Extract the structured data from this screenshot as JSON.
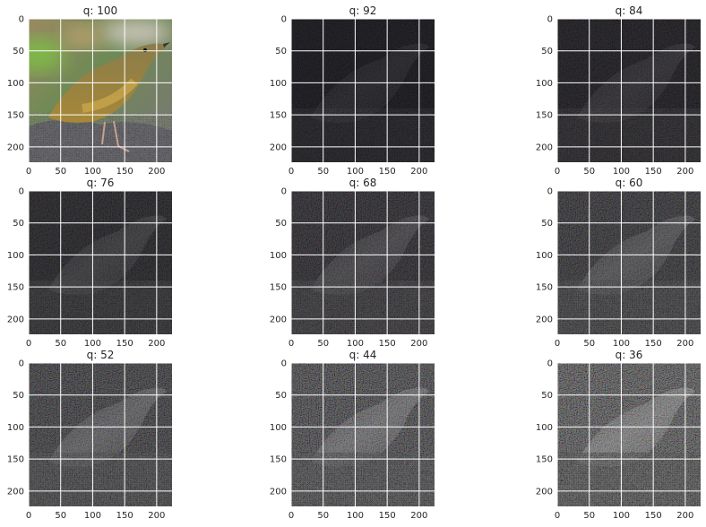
{
  "chart_data": {
    "type": "heatmap",
    "description_grid": {
      "rows": 3,
      "cols": 3
    },
    "axis": {
      "xlim": [
        0,
        224
      ],
      "ylim": [
        224,
        0
      ],
      "x_ticks": [
        0,
        50,
        100,
        150,
        200
      ],
      "y_ticks": [
        0,
        50,
        100,
        150,
        200
      ],
      "grid": true,
      "grid_color": "#ffffff"
    },
    "panels": [
      {
        "title": "q: 100",
        "quality": 100
      },
      {
        "title": "q: 92",
        "quality": 92
      },
      {
        "title": "q: 84",
        "quality": 84
      },
      {
        "title": "q: 76",
        "quality": 76
      },
      {
        "title": "q: 68",
        "quality": 68
      },
      {
        "title": "q: 60",
        "quality": 60
      },
      {
        "title": "q: 52",
        "quality": 52
      },
      {
        "title": "q: 44",
        "quality": 44
      },
      {
        "title": "q: 36",
        "quality": 36
      }
    ],
    "colors": {
      "background_dark": "#0d0b10",
      "bird_body": "#8a7a44",
      "bird_belly": "#a88a3a",
      "foliage": "#7fb84a",
      "rock": "#5a5a62"
    }
  }
}
